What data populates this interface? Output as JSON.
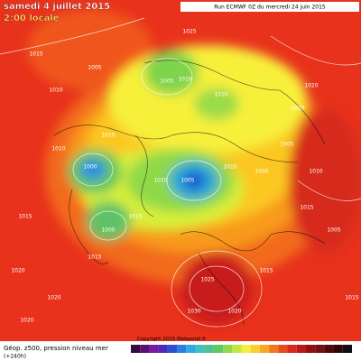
{
  "header": {
    "date": "samedi 4 juillet 2015",
    "time": "2:00 locale",
    "run": "Run ECMWF 0Z du mercredi 24 juin 2015"
  },
  "footer": {
    "field": "Géop. z500, pression niveau mer",
    "lead": "(+240h)",
    "copyright": "Copyright 2015 Meteociel.fr"
  },
  "isobar_labels": [
    "1015",
    "1010",
    "1005",
    "1000",
    "1010",
    "1015",
    "1020",
    "1010",
    "1005",
    "1010",
    "1000",
    "1015",
    "1020",
    "1010",
    "1005",
    "1015",
    "1010",
    "1000",
    "1005",
    "1010",
    "1020",
    "1025",
    "1030",
    "1015",
    "1020",
    "1025",
    "1010",
    "1015",
    "1005",
    "1010",
    "1020",
    "1015"
  ]
}
